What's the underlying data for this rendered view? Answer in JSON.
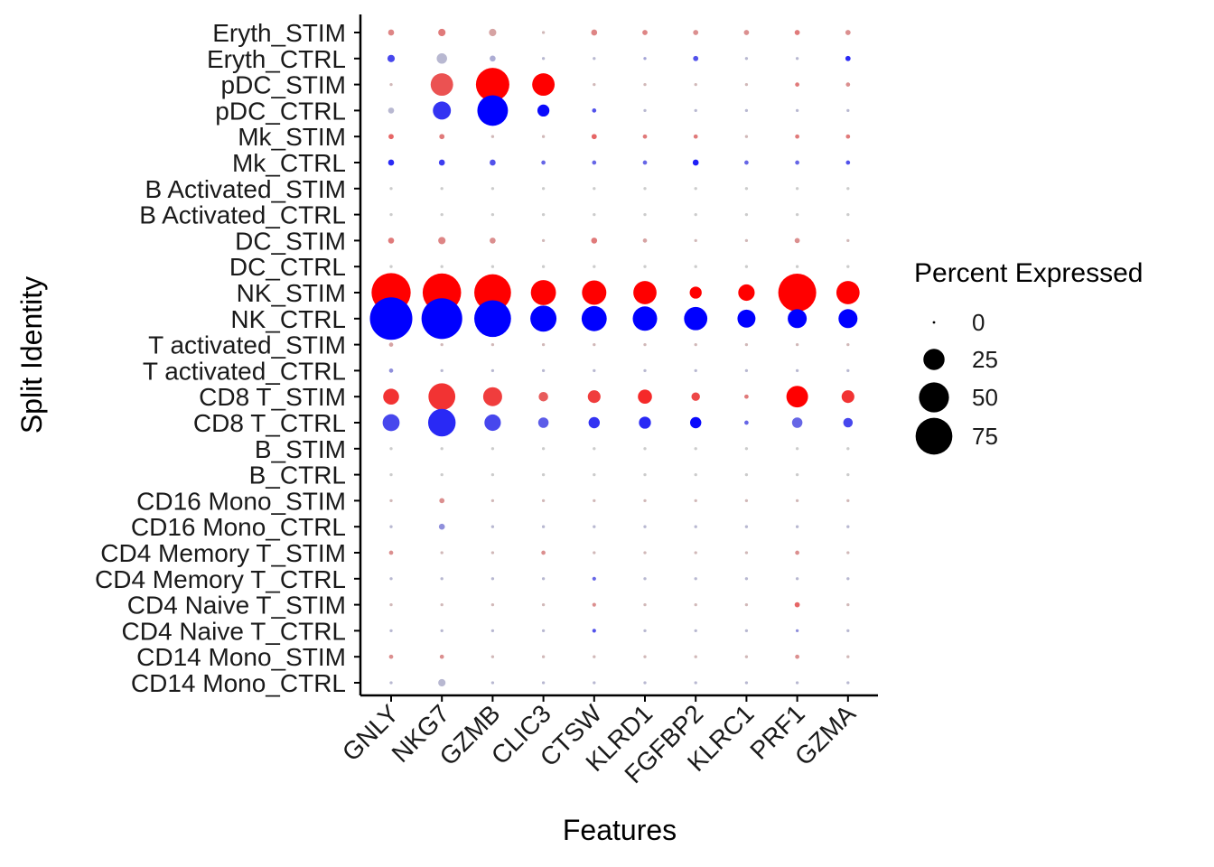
{
  "chart_data": {
    "type": "dot",
    "title": "",
    "xlabel": "Features",
    "ylabel": "Split Identity",
    "features": [
      "GNLY",
      "NKG7",
      "GZMB",
      "CLIC3",
      "CTSW",
      "KLRD1",
      "FGFBP2",
      "KLRC1",
      "PRF1",
      "GZMA"
    ],
    "identities": [
      "Eryth_STIM",
      "Eryth_CTRL",
      "pDC_STIM",
      "pDC_CTRL",
      "Mk_STIM",
      "Mk_CTRL",
      "B Activated_STIM",
      "B Activated_CTRL",
      "DC_STIM",
      "DC_CTRL",
      "NK_STIM",
      "NK_CTRL",
      "T activated_STIM",
      "T activated_CTRL",
      "CD8 T_STIM",
      "CD8 T_CTRL",
      "B_STIM",
      "B_CTRL",
      "CD16 Mono_STIM",
      "CD16 Mono_CTRL",
      "CD4 Memory T_STIM",
      "CD4 Memory T_CTRL",
      "CD4 Naive T_STIM",
      "CD4 Naive T_CTRL",
      "CD14 Mono_STIM",
      "CD14 Mono_CTRL"
    ],
    "pct_exp": [
      [
        2,
        3,
        3,
        0.5,
        2,
        1.5,
        1.5,
        1.5,
        1.5,
        1.5
      ],
      [
        3,
        6,
        2,
        0.5,
        0.5,
        0.5,
        1.5,
        0.5,
        0.5,
        1.5
      ],
      [
        0.5,
        28,
        62,
        28,
        0.5,
        0.5,
        0.5,
        0.5,
        1,
        1
      ],
      [
        2,
        18,
        52,
        8,
        1,
        0.5,
        0.5,
        0.5,
        0.5,
        0.5
      ],
      [
        1.5,
        1.5,
        0.5,
        0.5,
        1.5,
        1,
        1,
        0.5,
        1,
        1
      ],
      [
        2,
        2,
        2,
        1,
        1,
        1,
        2,
        1,
        1,
        1
      ],
      [
        0.5,
        0.5,
        0.5,
        0.5,
        0.5,
        0.5,
        0.5,
        0.5,
        0.5,
        0.5
      ],
      [
        0.5,
        0.5,
        0.5,
        0.5,
        0.5,
        0.5,
        0.5,
        0.5,
        0.5,
        0.5
      ],
      [
        2,
        3,
        2,
        0.5,
        2,
        1,
        0.5,
        0.5,
        1.5,
        0.5
      ],
      [
        0.5,
        0.5,
        0.5,
        0.5,
        0.5,
        0.5,
        0.5,
        0.5,
        0.5,
        0.5
      ],
      [
        85,
        82,
        75,
        35,
        33,
        30,
        8,
        15,
        80,
        30
      ],
      [
        100,
        92,
        75,
        38,
        35,
        33,
        30,
        18,
        20,
        20
      ],
      [
        1,
        0.5,
        0.5,
        0.5,
        0.5,
        0.5,
        0.5,
        0.5,
        0.5,
        0.5
      ],
      [
        1,
        0.5,
        0.5,
        0.5,
        0.5,
        0.5,
        0.5,
        0.5,
        0.5,
        0.5
      ],
      [
        14,
        40,
        20,
        5,
        9,
        11,
        4,
        1,
        26,
        9
      ],
      [
        16,
        42,
        15,
        6,
        7,
        8,
        7,
        1,
        6,
        5
      ],
      [
        0.5,
        0.5,
        0.5,
        0.5,
        0.5,
        0.5,
        0.5,
        0.5,
        0.5,
        0.5
      ],
      [
        0.5,
        0.5,
        0.5,
        0.5,
        0.5,
        0.5,
        0.5,
        0.5,
        0.5,
        0.5
      ],
      [
        0.5,
        1.5,
        0.5,
        0.5,
        0.5,
        0.5,
        0.5,
        0.5,
        0.5,
        0.5
      ],
      [
        0.5,
        2,
        0.5,
        0.5,
        0.5,
        0.5,
        0.5,
        0.5,
        0.5,
        0.5
      ],
      [
        1,
        0.5,
        0.5,
        1,
        0.5,
        0.5,
        0.5,
        0.5,
        1,
        0.5
      ],
      [
        0.5,
        0.5,
        0.5,
        0.5,
        0.8,
        0.5,
        0.5,
        0.5,
        0.5,
        0.5
      ],
      [
        0.5,
        0.5,
        0.5,
        0.5,
        0.8,
        0.5,
        0.5,
        0.5,
        1.5,
        0.5
      ],
      [
        0.5,
        0.5,
        0.5,
        0.5,
        0.8,
        0.5,
        0.5,
        0.5,
        0.5,
        0.5
      ],
      [
        1,
        1,
        0.5,
        0.5,
        0.5,
        0.5,
        0.5,
        0.5,
        1,
        0.5
      ],
      [
        0.5,
        3,
        0.5,
        0.5,
        0.5,
        0.5,
        0.5,
        0.5,
        0.5,
        0.5
      ]
    ],
    "avg_exp_scaled": [
      [
        0.35,
        0.4,
        0.2,
        0.1,
        0.35,
        0.35,
        0.3,
        0.3,
        0.4,
        0.3
      ],
      [
        0.65,
        0.1,
        0.15,
        0.1,
        0.1,
        0.2,
        0.6,
        0.1,
        0.1,
        0.8
      ],
      [
        0.1,
        0.6,
        1.0,
        1.0,
        0.1,
        0.1,
        0.1,
        0.1,
        0.4,
        0.3
      ],
      [
        0.1,
        0.75,
        1.0,
        0.95,
        0.6,
        0.1,
        0.1,
        0.1,
        0.1,
        0.1
      ],
      [
        0.5,
        0.4,
        0.1,
        0.1,
        0.5,
        0.4,
        0.4,
        0.1,
        0.4,
        0.4
      ],
      [
        0.8,
        0.7,
        0.6,
        0.5,
        0.5,
        0.5,
        0.85,
        0.5,
        0.5,
        0.6
      ],
      [
        0,
        0,
        0,
        0,
        0,
        0,
        0,
        0,
        0,
        0
      ],
      [
        0,
        0,
        0,
        0,
        0,
        0,
        0,
        0,
        0,
        0
      ],
      [
        0.4,
        0.35,
        0.3,
        0.1,
        0.4,
        0.2,
        0.1,
        0.1,
        0.3,
        0.1
      ],
      [
        0,
        0,
        0,
        0,
        0,
        0,
        0,
        0,
        0,
        0
      ],
      [
        1,
        1,
        1,
        1,
        1,
        1,
        1,
        1,
        1,
        1
      ],
      [
        1,
        1,
        1,
        1,
        1,
        1,
        1,
        1,
        1,
        1
      ],
      [
        0.2,
        0.1,
        0.1,
        0.1,
        0.1,
        0.1,
        0.1,
        0.1,
        0.1,
        0.1
      ],
      [
        0.3,
        0.1,
        0.1,
        0.1,
        0.1,
        0.1,
        0.1,
        0.1,
        0.1,
        0.1
      ],
      [
        0.75,
        0.75,
        0.7,
        0.55,
        0.7,
        0.8,
        0.65,
        0.4,
        1.0,
        0.75
      ],
      [
        0.65,
        0.8,
        0.65,
        0.55,
        0.75,
        0.8,
        0.95,
        0.5,
        0.5,
        0.65
      ],
      [
        0,
        0,
        0,
        0,
        0,
        0,
        0,
        0,
        0,
        0
      ],
      [
        0,
        0,
        0,
        0,
        0,
        0,
        0,
        0,
        0,
        0
      ],
      [
        0.1,
        0.3,
        0.1,
        0.1,
        0.1,
        0.1,
        0.1,
        0.1,
        0.1,
        0.1
      ],
      [
        0.1,
        0.3,
        0.1,
        0.1,
        0.1,
        0.1,
        0.1,
        0.1,
        0.1,
        0.1
      ],
      [
        0.3,
        0.1,
        0.1,
        0.3,
        0.1,
        0.1,
        0.1,
        0.1,
        0.3,
        0.1
      ],
      [
        0.1,
        0.1,
        0.1,
        0.1,
        0.5,
        0.1,
        0.1,
        0.1,
        0.1,
        0.1
      ],
      [
        0.1,
        0.1,
        0.1,
        0.1,
        0.3,
        0.1,
        0.1,
        0.1,
        0.5,
        0.1
      ],
      [
        0.1,
        0.1,
        0.1,
        0.1,
        0.6,
        0.1,
        0.1,
        0.1,
        0.3,
        0.1
      ],
      [
        0.3,
        0.3,
        0.1,
        0.1,
        0.1,
        0.1,
        0.1,
        0.1,
        0.3,
        0.1
      ],
      [
        0.1,
        0.1,
        0.1,
        0.1,
        0.1,
        0.1,
        0.1,
        0.1,
        0.1,
        0.1
      ]
    ],
    "colors": {
      "stim": "#ff0000",
      "ctrl": "#0000ff",
      "low": "#cccccc"
    },
    "size_legend": {
      "title": "Percent Expressed",
      "breaks": [
        0,
        25,
        50,
        75
      ],
      "labels": [
        "0",
        "25",
        "50",
        "75"
      ]
    },
    "grid": false,
    "legend_position": "right"
  }
}
